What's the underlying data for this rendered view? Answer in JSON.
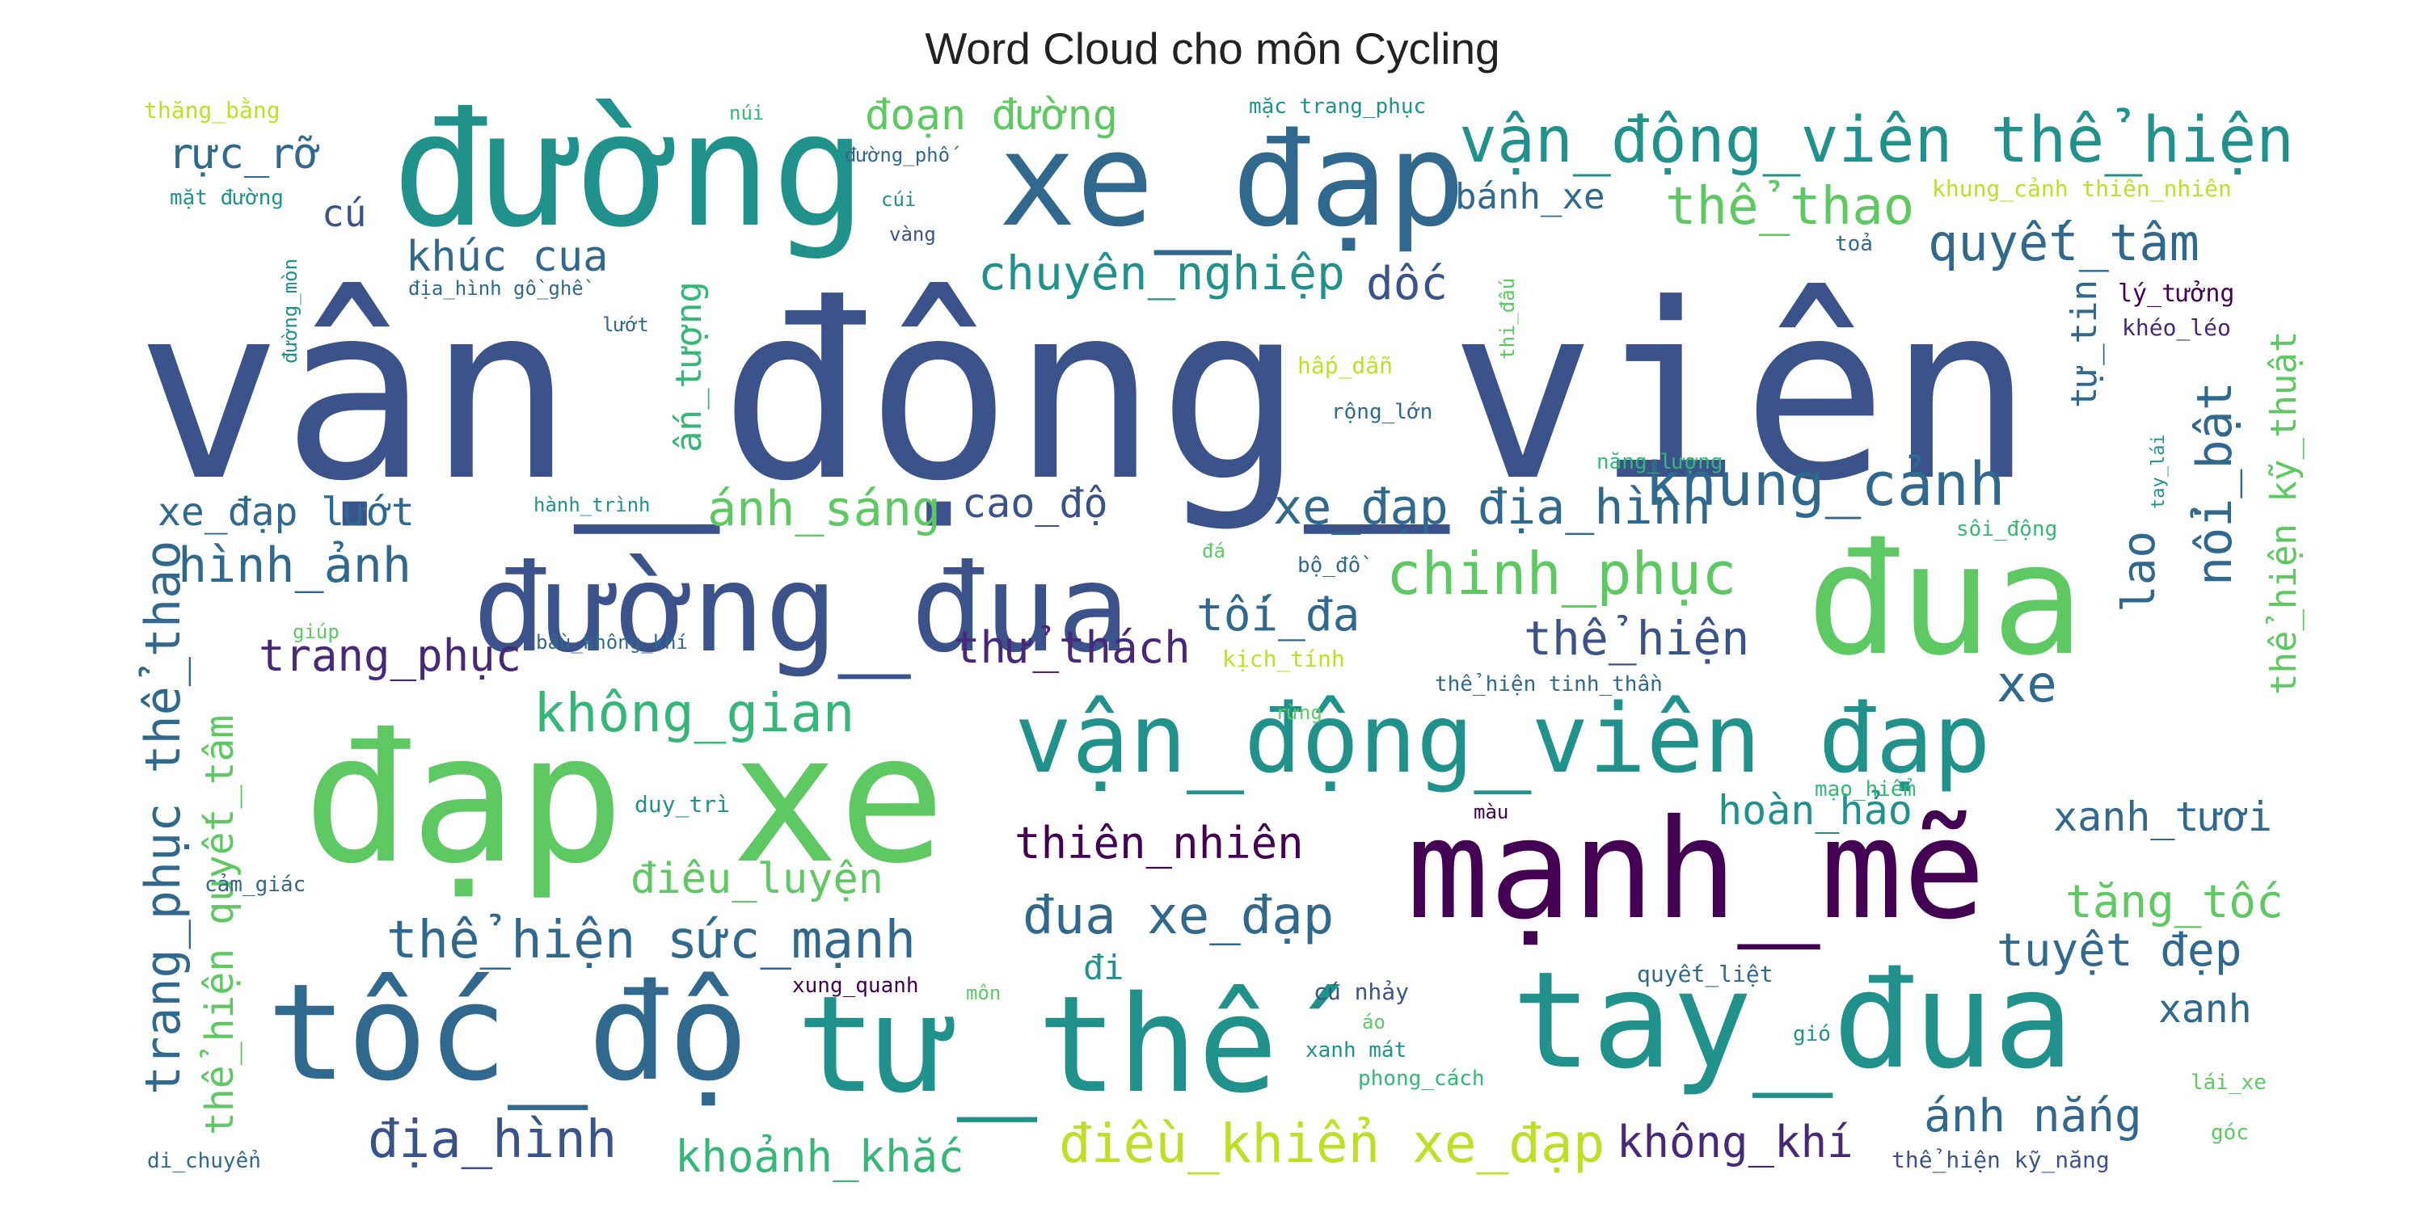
{
  "chart_data": {
    "type": "wordcloud",
    "title": "Word Cloud cho môn Cycling",
    "colormap": "viridis",
    "background": "#ffffff",
    "words": [
      {
        "text": "vận_động_viên",
        "weight": 100,
        "color": "#3b528b"
      },
      {
        "text": "đạp xe",
        "weight": 62,
        "color": "#5ec962"
      },
      {
        "text": "đường",
        "weight": 55,
        "color": "#21918c"
      },
      {
        "text": "đua",
        "weight": 54,
        "color": "#5ec962"
      },
      {
        "text": "mạnh_mẽ",
        "weight": 52,
        "color": "#440154"
      },
      {
        "text": "tốc_độ",
        "weight": 50,
        "color": "#31688e"
      },
      {
        "text": "tư_thế",
        "weight": 50,
        "color": "#21918c"
      },
      {
        "text": "tay_đua",
        "weight": 50,
        "color": "#21918c"
      },
      {
        "text": "xe_đạp",
        "weight": 48,
        "color": "#31688e"
      },
      {
        "text": "đường_đua",
        "weight": 46,
        "color": "#3b528b"
      },
      {
        "text": "vận_động_viên đạp",
        "weight": 40,
        "color": "#21918c"
      },
      {
        "text": "vận_động_viên thể_hiện",
        "weight": 27,
        "color": "#21918c"
      },
      {
        "text": "khung_cảnh",
        "weight": 24,
        "color": "#31688e"
      },
      {
        "text": "chinh_phục",
        "weight": 24,
        "color": "#5ec962"
      },
      {
        "text": "ánh_sáng",
        "weight": 21,
        "color": "#5ec962"
      },
      {
        "text": "thể_hiện sức_mạnh",
        "weight": 22,
        "color": "#31688e"
      },
      {
        "text": "điều_khiển xe_đạp",
        "weight": 22,
        "color": "#bddf26"
      },
      {
        "text": "không_gian",
        "weight": 22,
        "color": "#35b779"
      },
      {
        "text": "đua xe_đạp",
        "weight": 22,
        "color": "#31688e"
      },
      {
        "text": "xe_đạp địa_hình",
        "weight": 20,
        "color": "#31688e"
      },
      {
        "text": "trang_phục thể_thao",
        "weight": 21,
        "color": "#31688e"
      },
      {
        "text": "quyết_tâm",
        "weight": 22,
        "color": "#31688e"
      },
      {
        "text": "thể_thao",
        "weight": 22,
        "color": "#5ec962"
      },
      {
        "text": "nổi_bật",
        "weight": 21,
        "color": "#31688e"
      },
      {
        "text": "chuyên_nghiệp",
        "weight": 20,
        "color": "#21918c"
      },
      {
        "text": "hình_ảnh",
        "weight": 21,
        "color": "#31688e"
      },
      {
        "text": "địa_hình",
        "weight": 22,
        "color": "#3b528b"
      },
      {
        "text": "thể_hiện",
        "weight": 20,
        "color": "#3b528b"
      },
      {
        "text": "tuyệt đẹp",
        "weight": 20,
        "color": "#31688e"
      },
      {
        "text": "tăng_tốc",
        "weight": 20,
        "color": "#5ec962"
      },
      {
        "text": "thiên_nhiên",
        "weight": 19,
        "color": "#440154"
      },
      {
        "text": "thử_thách",
        "weight": 19,
        "color": "#482878"
      },
      {
        "text": "trang_phục",
        "weight": 19,
        "color": "#482878"
      },
      {
        "text": "tối_đa",
        "weight": 19,
        "color": "#31688e"
      },
      {
        "text": "khoảnh_khắc",
        "weight": 19,
        "color": "#35b779"
      },
      {
        "text": "không_khí",
        "weight": 19,
        "color": "#482878"
      },
      {
        "text": "ánh nắng",
        "weight": 19,
        "color": "#31688e"
      },
      {
        "text": "xanh_tươi",
        "weight": 19,
        "color": "#31688e"
      },
      {
        "text": "hoàn_hảo",
        "weight": 18,
        "color": "#21918c"
      },
      {
        "text": "điêu_luyện",
        "weight": 18,
        "color": "#5ec962"
      },
      {
        "text": "rực_rỡ",
        "weight": 18,
        "color": "#31688e"
      },
      {
        "text": "đoạn đường",
        "weight": 18,
        "color": "#5ec962"
      },
      {
        "text": "khúc cua",
        "weight": 18,
        "color": "#31688e"
      },
      {
        "text": "bánh_xe",
        "weight": 16,
        "color": "#31688e"
      },
      {
        "text": "dốc",
        "weight": 19,
        "color": "#3b528b"
      },
      {
        "text": "xe",
        "weight": 21,
        "color": "#31688e"
      },
      {
        "text": "lao",
        "weight": 19,
        "color": "#31688e"
      },
      {
        "text": "xanh",
        "weight": 17,
        "color": "#31688e"
      },
      {
        "text": "cao_độ",
        "weight": 17,
        "color": "#3b528b"
      },
      {
        "text": "xe_đạp lướt",
        "weight": 17,
        "color": "#31688e"
      },
      {
        "text": "ấn_tượng",
        "weight": 16,
        "color": "#35b779"
      },
      {
        "text": "thể_hiện kỹ_thuật",
        "weight": 16,
        "color": "#5ec962"
      },
      {
        "text": "thể_hiện quyết_tâm",
        "weight": 17,
        "color": "#5ec962"
      },
      {
        "text": "tự_tin",
        "weight": 15,
        "color": "#31688e"
      },
      {
        "text": "cú",
        "weight": 16,
        "color": "#3b528b"
      },
      {
        "text": "đi",
        "weight": 15,
        "color": "#21918c"
      },
      {
        "text": "thăng_bằng",
        "weight": 6,
        "color": "#bddf26"
      },
      {
        "text": "núi",
        "weight": 5,
        "color": "#35b779"
      },
      {
        "text": "mặc trang_phục",
        "weight": 5,
        "color": "#21918c"
      },
      {
        "text": "đường_phố",
        "weight": 5,
        "color": "#31688e"
      },
      {
        "text": "mặt đường",
        "weight": 5,
        "color": "#21918c"
      },
      {
        "text": "cúi",
        "weight": 5,
        "color": "#21918c"
      },
      {
        "text": "vàng",
        "weight": 5,
        "color": "#3b528b"
      },
      {
        "text": "khung_cảnh thiên_nhiên",
        "weight": 5,
        "color": "#bddf26"
      },
      {
        "text": "toả",
        "weight": 5,
        "color": "#31688e"
      },
      {
        "text": "đường_mòn",
        "weight": 5,
        "color": "#21918c"
      },
      {
        "text": "địa_hình gồ_ghề",
        "weight": 5,
        "color": "#31688e"
      },
      {
        "text": "lướt",
        "weight": 5,
        "color": "#31688e"
      },
      {
        "text": "thi_đấu",
        "weight": 5,
        "color": "#5ec962"
      },
      {
        "text": "lý_tưởng",
        "weight": 6,
        "color": "#440154"
      },
      {
        "text": "khéo_léo",
        "weight": 6,
        "color": "#482878"
      },
      {
        "text": "hấp_dẫn",
        "weight": 5,
        "color": "#bddf26"
      },
      {
        "text": "rộng_lớn",
        "weight": 5,
        "color": "#31688e"
      },
      {
        "text": "tay_lái",
        "weight": 5,
        "color": "#21918c"
      },
      {
        "text": "năng_lượng",
        "weight": 5,
        "color": "#35b779"
      },
      {
        "text": "hành_trình",
        "weight": 5,
        "color": "#21918c"
      },
      {
        "text": "sôi_động",
        "weight": 5,
        "color": "#35b779"
      },
      {
        "text": "đá",
        "weight": 5,
        "color": "#5ec962"
      },
      {
        "text": "bộ_đồ",
        "weight": 5,
        "color": "#31688e"
      },
      {
        "text": "giúp",
        "weight": 5,
        "color": "#5ec962"
      },
      {
        "text": "bầu_không_khí",
        "weight": 5,
        "color": "#31688e"
      },
      {
        "text": "kịch_tính",
        "weight": 5,
        "color": "#bddf26"
      },
      {
        "text": "thể_hiện tinh_thần",
        "weight": 5,
        "color": "#31688e"
      },
      {
        "text": "rừng",
        "weight": 5,
        "color": "#5ec962"
      },
      {
        "text": "duy_trì",
        "weight": 5,
        "color": "#21918c"
      },
      {
        "text": "màu",
        "weight": 5,
        "color": "#440154"
      },
      {
        "text": "mạo_hiểm",
        "weight": 5,
        "color": "#35b779"
      },
      {
        "text": "cảm_giác",
        "weight": 5,
        "color": "#31688e"
      },
      {
        "text": "xung_quanh",
        "weight": 5,
        "color": "#440154"
      },
      {
        "text": "môn",
        "weight": 5,
        "color": "#5ec962"
      },
      {
        "text": "cú nhảy",
        "weight": 5,
        "color": "#3b528b"
      },
      {
        "text": "quyết_liệt",
        "weight": 5,
        "color": "#31688e"
      },
      {
        "text": "áo",
        "weight": 5,
        "color": "#5ec962"
      },
      {
        "text": "gió",
        "weight": 5,
        "color": "#21918c"
      },
      {
        "text": "xanh mát",
        "weight": 5,
        "color": "#21918c"
      },
      {
        "text": "phong_cách",
        "weight": 5,
        "color": "#35b779"
      },
      {
        "text": "lái_xe",
        "weight": 5,
        "color": "#5ec962"
      },
      {
        "text": "góc",
        "weight": 5,
        "color": "#5ec962"
      },
      {
        "text": "di_chuyển",
        "weight": 5,
        "color": "#31688e"
      },
      {
        "text": "thể_hiện kỹ_năng",
        "weight": 5,
        "color": "#3b528b"
      }
    ]
  }
}
